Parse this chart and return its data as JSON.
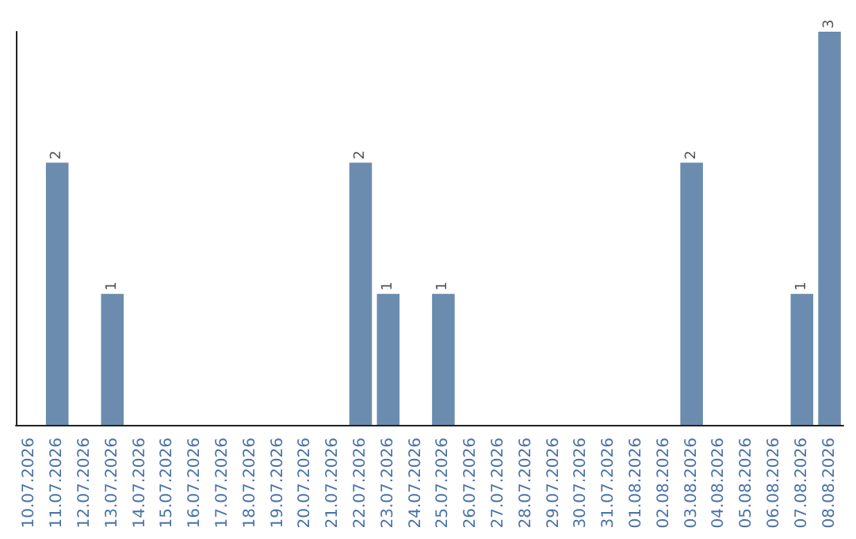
{
  "chart_data": {
    "type": "bar",
    "categories": [
      "10.07.2026",
      "11.07.2026",
      "12.07.2026",
      "13.07.2026",
      "14.07.2026",
      "15.07.2026",
      "16.07.2026",
      "17.07.2026",
      "18.07.2026",
      "19.07.2026",
      "20.07.2026",
      "21.07.2026",
      "22.07.2026",
      "23.07.2026",
      "24.07.2026",
      "25.07.2026",
      "26.07.2026",
      "27.07.2026",
      "28.07.2026",
      "29.07.2026",
      "30.07.2026",
      "31.07.2026",
      "01.08.2026",
      "02.08.2026",
      "03.08.2026",
      "04.08.2026",
      "05.08.2026",
      "06.08.2026",
      "07.08.2026",
      "08.08.2026"
    ],
    "values": [
      0,
      2,
      0,
      1,
      0,
      0,
      0,
      0,
      0,
      0,
      0,
      0,
      2,
      1,
      0,
      1,
      0,
      0,
      0,
      0,
      0,
      0,
      0,
      0,
      2,
      0,
      0,
      0,
      1,
      3
    ],
    "value_labels": [
      null,
      "2",
      null,
      "1",
      null,
      null,
      null,
      null,
      null,
      null,
      null,
      null,
      "2",
      "1",
      null,
      "1",
      null,
      null,
      null,
      null,
      null,
      null,
      null,
      null,
      "2",
      null,
      null,
      null,
      "1",
      "3"
    ],
    "color": "#6b8cae",
    "ylim": [
      0,
      3
    ],
    "tick_labels": "x",
    "grid": false
  }
}
